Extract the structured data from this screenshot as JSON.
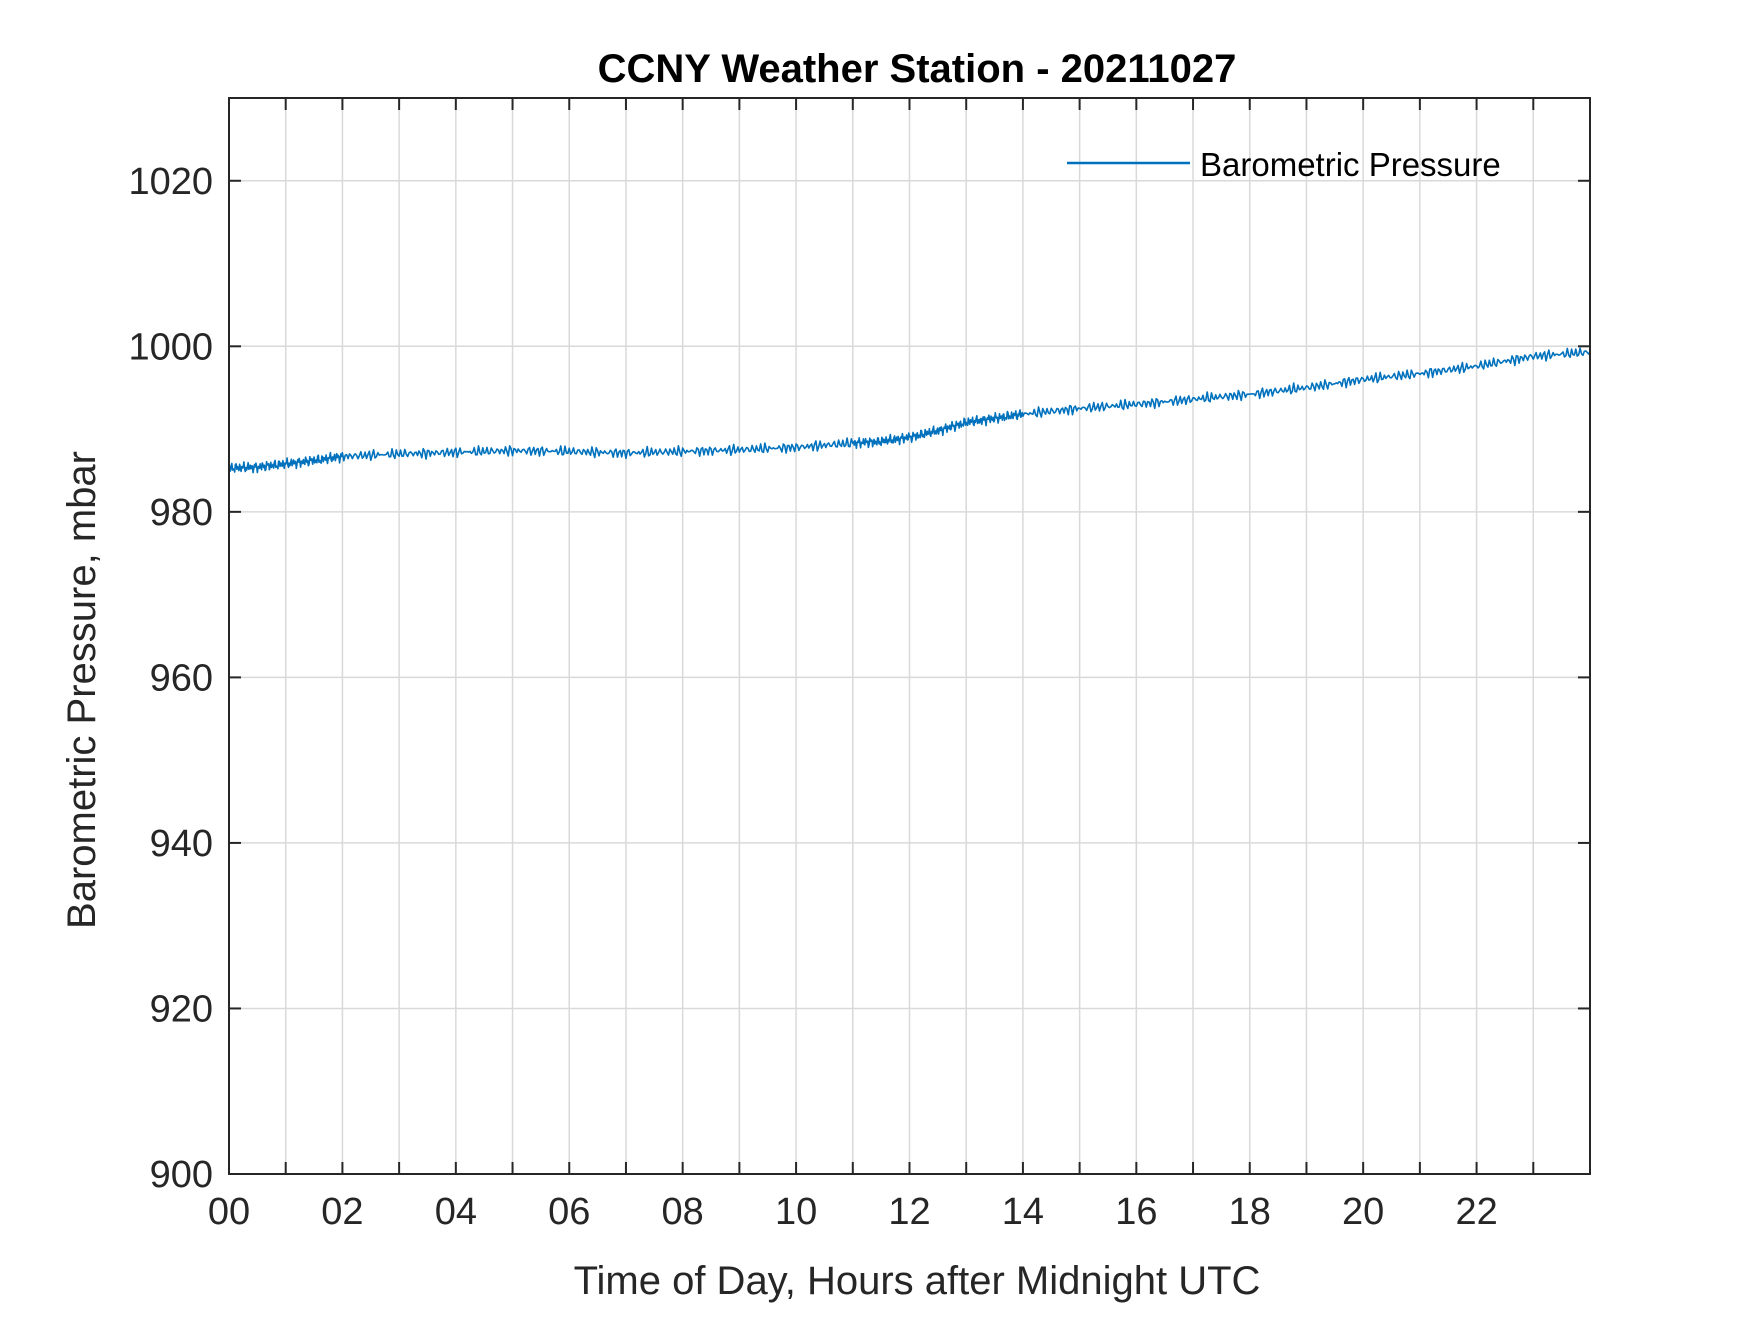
{
  "chart_data": {
    "type": "line",
    "title": "CCNY Weather Station - 20211027",
    "xlabel": "Time of Day, Hours after Midnight UTC",
    "ylabel": "Barometric Pressure, mbar",
    "xlim": [
      0,
      24
    ],
    "ylim": [
      900,
      1030
    ],
    "x_ticks": [
      0,
      2,
      4,
      6,
      8,
      10,
      12,
      14,
      16,
      18,
      20,
      22
    ],
    "x_tick_labels": [
      "00",
      "02",
      "04",
      "06",
      "08",
      "10",
      "12",
      "14",
      "16",
      "18",
      "20",
      "22"
    ],
    "x_minor_grid": [
      1,
      3,
      5,
      7,
      9,
      11,
      13,
      15,
      17,
      19,
      21,
      23
    ],
    "y_ticks": [
      900,
      920,
      940,
      960,
      980,
      1000,
      1020
    ],
    "y_tick_labels": [
      "900",
      "920",
      "940",
      "960",
      "980",
      "1000",
      "1020"
    ],
    "grid": true,
    "legend": "top-right",
    "series": [
      {
        "name": "Barometric Pressure",
        "color": "#0072BD",
        "x": [
          0,
          0.5,
          1,
          1.5,
          2,
          3,
          4,
          5,
          6,
          7,
          8,
          9,
          10,
          11,
          11.5,
          12,
          12.5,
          13,
          13.5,
          14,
          15,
          16,
          17,
          18,
          19,
          20,
          21,
          22,
          23,
          24
        ],
        "values": [
          985.3,
          985.4,
          985.8,
          986.2,
          986.7,
          987.0,
          987.2,
          987.4,
          987.3,
          987.1,
          987.3,
          987.5,
          987.8,
          988.3,
          988.5,
          989.0,
          989.8,
          990.8,
          991.3,
          991.8,
          992.5,
          993.0,
          993.6,
          994.2,
          995.0,
          996.0,
          996.7,
          997.6,
          998.8,
          999.3
        ]
      }
    ]
  }
}
